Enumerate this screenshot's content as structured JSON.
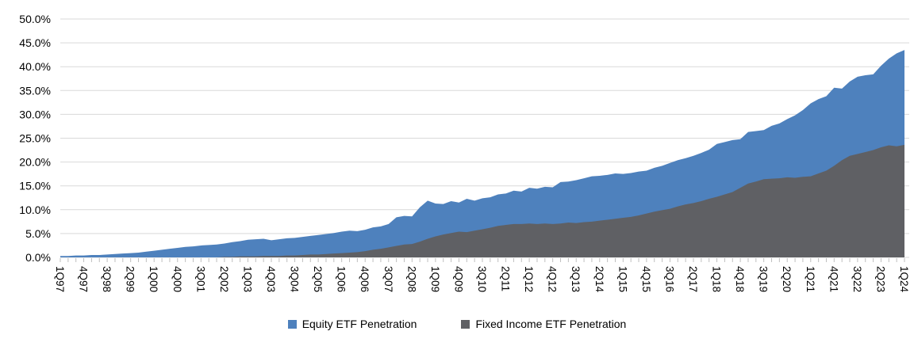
{
  "chart_data": {
    "type": "area",
    "title": "",
    "xlabel": "",
    "ylabel": "",
    "grid": true,
    "legend_position": "bottom",
    "y_axis": {
      "min": 0,
      "max": 50,
      "step": 5,
      "unit": "%",
      "tick_labels": [
        "0.0%",
        "5.0%",
        "10.0%",
        "15.0%",
        "20.0%",
        "25.0%",
        "30.0%",
        "35.0%",
        "40.0%",
        "45.0%",
        "50.0%"
      ]
    },
    "x_axis": {
      "first_quarter": "1Q97",
      "last_quarter": "1Q24",
      "quarters_total": 109,
      "label_every_n_quarters": 3,
      "tick_labels": [
        "1Q97",
        "4Q97",
        "3Q98",
        "2Q99",
        "1Q00",
        "4Q00",
        "3Q01",
        "2Q02",
        "1Q03",
        "4Q03",
        "3Q04",
        "2Q05",
        "1Q06",
        "4Q06",
        "3Q07",
        "2Q08",
        "1Q09",
        "4Q09",
        "3Q10",
        "2Q11",
        "1Q12",
        "4Q12",
        "3Q13",
        "2Q14",
        "1Q15",
        "4Q15",
        "3Q16",
        "2Q17",
        "1Q18",
        "4Q18",
        "3Q19",
        "2Q20",
        "1Q21",
        "4Q21",
        "3Q22",
        "2Q23",
        "1Q24"
      ]
    },
    "series": [
      {
        "name": "Equity ETF Penetration",
        "color": "#4E81BD",
        "values": [
          0.3,
          0.3,
          0.4,
          0.4,
          0.5,
          0.5,
          0.6,
          0.7,
          0.8,
          0.9,
          1.0,
          1.2,
          1.4,
          1.6,
          1.8,
          2.0,
          2.2,
          2.3,
          2.5,
          2.6,
          2.7,
          2.9,
          3.2,
          3.4,
          3.7,
          3.8,
          3.9,
          3.6,
          3.8,
          4.0,
          4.1,
          4.3,
          4.5,
          4.7,
          4.9,
          5.1,
          5.4,
          5.6,
          5.5,
          5.8,
          6.3,
          6.5,
          7.0,
          8.4,
          8.7,
          8.6,
          10.5,
          11.9,
          11.3,
          11.2,
          11.8,
          11.5,
          12.3,
          11.9,
          12.4,
          12.6,
          13.2,
          13.4,
          14.0,
          13.8,
          14.6,
          14.4,
          14.8,
          14.7,
          15.8,
          15.9,
          16.2,
          16.6,
          17.0,
          17.1,
          17.3,
          17.6,
          17.5,
          17.7,
          18.0,
          18.2,
          18.8,
          19.2,
          19.8,
          20.4,
          20.8,
          21.3,
          21.9,
          22.6,
          23.8,
          24.2,
          24.6,
          24.8,
          26.3,
          26.5,
          26.7,
          27.6,
          28.1,
          29.0,
          29.8,
          30.9,
          32.3,
          33.2,
          33.8,
          35.6,
          35.4,
          36.9,
          37.9,
          38.2,
          38.4,
          40.2,
          41.7,
          42.8,
          43.5
        ]
      },
      {
        "name": "Fixed Income ETF Penetration",
        "color": "#5F6064",
        "values": [
          0,
          0,
          0,
          0,
          0,
          0,
          0,
          0,
          0,
          0,
          0,
          0,
          0,
          0,
          0,
          0,
          0,
          0,
          0,
          0,
          0.0,
          0.1,
          0.1,
          0.2,
          0.2,
          0.2,
          0.3,
          0.3,
          0.3,
          0.4,
          0.4,
          0.5,
          0.6,
          0.6,
          0.7,
          0.8,
          0.9,
          1.0,
          1.1,
          1.3,
          1.6,
          1.8,
          2.1,
          2.4,
          2.7,
          2.8,
          3.3,
          3.9,
          4.4,
          4.8,
          5.1,
          5.4,
          5.3,
          5.6,
          5.9,
          6.2,
          6.6,
          6.8,
          7.0,
          7.0,
          7.1,
          7.0,
          7.1,
          7.0,
          7.1,
          7.3,
          7.2,
          7.4,
          7.5,
          7.7,
          7.9,
          8.1,
          8.3,
          8.5,
          8.8,
          9.2,
          9.6,
          9.9,
          10.2,
          10.7,
          11.1,
          11.4,
          11.8,
          12.3,
          12.7,
          13.2,
          13.7,
          14.6,
          15.5,
          15.9,
          16.4,
          16.5,
          16.6,
          16.8,
          16.7,
          16.9,
          17.0,
          17.6,
          18.2,
          19.2,
          20.4,
          21.3,
          21.7,
          22.1,
          22.5,
          23.1,
          23.5,
          23.3,
          23.6
        ]
      }
    ]
  },
  "style_colors": {
    "gridline": "#D9D9D9",
    "axis_tick": "#BFBFBF",
    "axis_text": "#000000",
    "background": "#FFFFFF"
  }
}
